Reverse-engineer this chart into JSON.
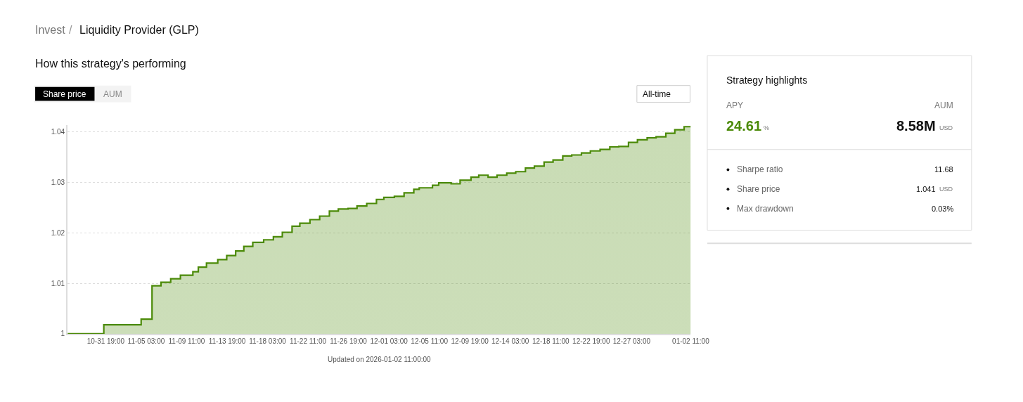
{
  "chart_data": [
    {
      "type": "area",
      "title": "How this strategy's performing",
      "annotations": [
        "Invest",
        "/",
        "Liquidity Provider (GLP)",
        "Share price",
        "AUM",
        "All-time",
        "Updated on 2026-01-02 11:00:00"
      ],
      "x": [
        "2025-10-27T17:00",
        "2025-10-31T14:00",
        "2025-10-31T14:00",
        "2025-11-04T14:00",
        "2025-11-04T14:00",
        "2025-11-05T18:00",
        "2025-11-05T18:00",
        "2025-11-06T17:00",
        "2025-11-06T17:00",
        "2025-11-07T18:00",
        "2025-11-07T18:00",
        "2025-11-08T19:00",
        "2025-11-08T19:00",
        "2025-11-10T03:00",
        "2025-11-10T03:00",
        "2025-11-10T17:00",
        "2025-11-10T17:00",
        "2025-11-11T14:00",
        "2025-11-11T14:00",
        "2025-11-12T19:00",
        "2025-11-12T19:00",
        "2025-11-13T18:00",
        "2025-11-13T18:00",
        "2025-11-14T17:00",
        "2025-11-14T17:00",
        "2025-11-15T14:00",
        "2025-11-15T14:00",
        "2025-11-16T13:00",
        "2025-11-16T13:00",
        "2025-11-17T17:00",
        "2025-11-17T17:00",
        "2025-11-18T18:00",
        "2025-11-18T18:00",
        "2025-11-19T17:00",
        "2025-11-19T17:00",
        "2025-11-20T18:00",
        "2025-11-20T18:00",
        "2025-11-21T14:00",
        "2025-11-21T14:00",
        "2025-11-22T16:00",
        "2025-11-22T16:00",
        "2025-11-23T17:00",
        "2025-11-23T17:00",
        "2025-11-24T18:00",
        "2025-11-24T18:00",
        "2025-11-25T17:00",
        "2025-11-25T17:00",
        "2025-11-26T18:00",
        "2025-11-26T18:00",
        "2025-11-27T17:00",
        "2025-11-27T17:00",
        "2025-11-28T18:00",
        "2025-11-28T18:00",
        "2025-11-29T19:00",
        "2025-11-29T19:00",
        "2025-11-30T14:00",
        "2025-11-30T14:00",
        "2025-12-01T17:00",
        "2025-12-01T17:00",
        "2025-12-02T18:00",
        "2025-12-02T18:00",
        "2025-12-03T19:00",
        "2025-12-03T19:00",
        "2025-12-04T09:00",
        "2025-12-04T09:00",
        "2025-12-05T19:00",
        "2025-12-05T19:00",
        "2025-12-06T11:00",
        "2025-12-06T11:00",
        "2025-12-07T19:00",
        "2025-12-07T19:00",
        "2025-12-08T18:00",
        "2025-12-08T18:00",
        "2025-12-09T22:00",
        "2025-12-09T22:00",
        "2025-12-10T18:00",
        "2025-12-10T18:00",
        "2025-12-11T18:00",
        "2025-12-11T18:00",
        "2025-12-12T17:00",
        "2025-12-12T17:00",
        "2025-12-13T18:00",
        "2025-12-13T18:00",
        "2025-12-14T17:00",
        "2025-12-14T17:00",
        "2025-12-15T18:00",
        "2025-12-15T18:00",
        "2025-12-16T17:00",
        "2025-12-16T17:00",
        "2025-12-17T18:00",
        "2025-12-17T18:00",
        "2025-12-18T17:00",
        "2025-12-18T17:00",
        "2025-12-19T18:00",
        "2025-12-19T18:00",
        "2025-12-20T17:00",
        "2025-12-20T17:00",
        "2025-12-21T18:00",
        "2025-12-21T18:00",
        "2025-12-22T17:00",
        "2025-12-22T17:00",
        "2025-12-23T18:00",
        "2025-12-23T18:00",
        "2025-12-24T19:00",
        "2025-12-24T19:00",
        "2025-12-25T18:00",
        "2025-12-25T18:00",
        "2025-12-26T19:00",
        "2025-12-26T19:00",
        "2025-12-27T18:00",
        "2025-12-27T18:00",
        "2025-12-28T19:00",
        "2025-12-28T19:00",
        "2025-12-29T18:00",
        "2025-12-29T18:00",
        "2025-12-30T19:00",
        "2025-12-30T19:00",
        "2025-12-31T18:00",
        "2025-12-31T18:00",
        "2026-01-01T18:00",
        "2026-01-01T18:00",
        "2026-01-02T11:00"
      ],
      "series": [
        {
          "color": "#4b8a08",
          "values": [
            1.0,
            1.0,
            1.0018,
            1.0018,
            1.0029,
            1.0029,
            1.0095,
            1.0095,
            1.0102,
            1.0102,
            1.0109,
            1.0109,
            1.0116,
            1.0116,
            1.0123,
            1.0123,
            1.0132,
            1.0132,
            1.014,
            1.014,
            1.0147,
            1.0147,
            1.0155,
            1.0155,
            1.0164,
            1.0164,
            1.0173,
            1.0173,
            1.0181,
            1.0181,
            1.0186,
            1.0186,
            1.0192,
            1.0192,
            1.0201,
            1.0201,
            1.0213,
            1.0213,
            1.0219,
            1.0219,
            1.0226,
            1.0226,
            1.0233,
            1.0233,
            1.0243,
            1.0243,
            1.0247,
            1.0247,
            1.0248,
            1.0248,
            1.0253,
            1.0253,
            1.0258,
            1.0258,
            1.0266,
            1.0266,
            1.027,
            1.027,
            1.0272,
            1.0272,
            1.0279,
            1.0279,
            1.0286,
            1.0286,
            1.0289,
            1.0289,
            1.0294,
            1.0294,
            1.0299,
            1.0299,
            1.0297,
            1.0297,
            1.0304,
            1.0304,
            1.031,
            1.031,
            1.0314,
            1.0314,
            1.031,
            1.031,
            1.0314,
            1.0314,
            1.0318,
            1.0318,
            1.0321,
            1.0321,
            1.0328,
            1.0328,
            1.0332,
            1.0332,
            1.034,
            1.034,
            1.0344,
            1.0344,
            1.0352,
            1.0352,
            1.0354,
            1.0354,
            1.0358,
            1.0358,
            1.0362,
            1.0362,
            1.0365,
            1.0365,
            1.037,
            1.037,
            1.0371,
            1.0371,
            1.0379,
            1.0379,
            1.0384,
            1.0384,
            1.0388,
            1.0388,
            1.039,
            1.039,
            1.0397,
            1.0397,
            1.0404,
            1.0404,
            1.041,
            1.041
          ]
        }
      ],
      "xlim": [
        "2025-10-27T17:00",
        "2026-01-02T11:00"
      ],
      "xticks": [
        {
          "value": "2025-10-31T19:00",
          "label": "10-31 19:00"
        },
        {
          "value": "2025-11-05T03:00",
          "label": "11-05 03:00"
        },
        {
          "value": "2025-11-09T11:00",
          "label": "11-09 11:00"
        },
        {
          "value": "2025-11-13T19:00",
          "label": "11-13 19:00"
        },
        {
          "value": "2025-11-18T03:00",
          "label": "11-18 03:00"
        },
        {
          "value": "2025-11-22T11:00",
          "label": "11-22 11:00"
        },
        {
          "value": "2025-11-26T19:00",
          "label": "11-26 19:00"
        },
        {
          "value": "2025-12-01T03:00",
          "label": "12-01 03:00"
        },
        {
          "value": "2025-12-05T11:00",
          "label": "12-05 11:00"
        },
        {
          "value": "2025-12-09T19:00",
          "label": "12-09 19:00"
        },
        {
          "value": "2025-12-14T03:00",
          "label": "12-14 03:00"
        },
        {
          "value": "2025-12-18T11:00",
          "label": "12-18 11:00"
        },
        {
          "value": "2025-12-22T19:00",
          "label": "12-22 19:00"
        },
        {
          "value": "2025-12-27T03:00",
          "label": "12-27 03:00"
        },
        {
          "value": "2026-01-02T11:00",
          "label": "01-02 11:00"
        }
      ],
      "ylim": [
        1,
        1.0413
      ],
      "yticks": [
        1,
        1.01,
        1.02,
        1.03,
        1.04
      ],
      "grid": "y",
      "line_style": "solid",
      "marker": "none"
    },
    {
      "type": "other",
      "title": "Strategy highlights",
      "annotations": [
        "APY",
        "24.61",
        "%",
        "AUM",
        "8.58M",
        "USD",
        "Sharpe ratio",
        "11.68",
        "Share price",
        "1.041",
        "USD",
        "Max drawdown",
        "0.03%"
      ]
    }
  ]
}
